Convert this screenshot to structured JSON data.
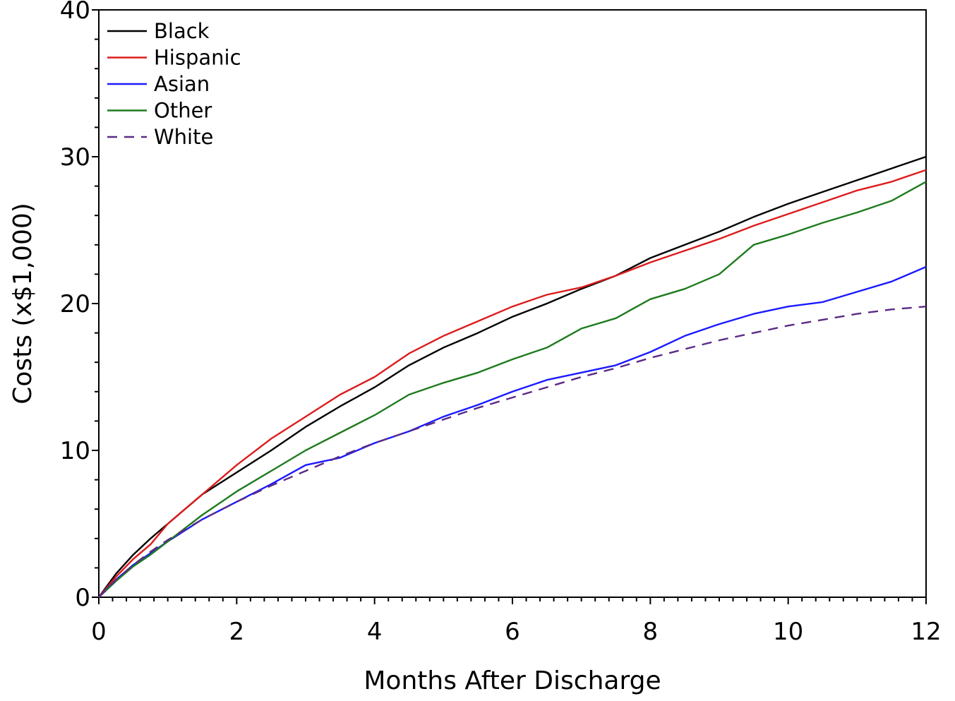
{
  "chart_data": {
    "type": "line",
    "title": "",
    "xlabel": "Months After Discharge",
    "ylabel": "Costs (x$1,000)",
    "xlim": [
      0,
      12
    ],
    "ylim": [
      0,
      40
    ],
    "xticks": [
      0,
      2,
      4,
      6,
      8,
      10,
      12
    ],
    "yticks": [
      0,
      10,
      20,
      30,
      40
    ],
    "xtick_labels": [
      "0",
      "2",
      "4",
      "6",
      "8",
      "10",
      "12"
    ],
    "ytick_labels": [
      "0",
      "10",
      "20",
      "30",
      "40"
    ],
    "grid": false,
    "legend_position": "top-left",
    "series": [
      {
        "name": "Black",
        "color": "#000000",
        "dash": "solid",
        "x": [
          0,
          0.25,
          0.5,
          0.75,
          1,
          1.5,
          2,
          2.5,
          3,
          3.5,
          4,
          4.5,
          5,
          5.5,
          6,
          6.5,
          7,
          7.5,
          8,
          8.5,
          9,
          9.5,
          10,
          10.5,
          11,
          11.5,
          12
        ],
        "y": [
          0,
          1.6,
          2.9,
          4.0,
          5.0,
          7.0,
          8.5,
          10.0,
          11.6,
          13.0,
          14.3,
          15.8,
          17.0,
          18.0,
          19.1,
          20.0,
          21.0,
          21.9,
          23.1,
          24.0,
          24.9,
          25.9,
          26.8,
          27.6,
          28.4,
          29.2,
          30.0
        ]
      },
      {
        "name": "Hispanic",
        "color": "#dd1c1c",
        "dash": "solid",
        "x": [
          0,
          0.25,
          0.5,
          0.75,
          1,
          1.5,
          2,
          2.5,
          3,
          3.5,
          4,
          4.5,
          5,
          5.5,
          6,
          6.5,
          7,
          7.5,
          8,
          8.5,
          9,
          9.5,
          10,
          10.5,
          11,
          11.5,
          12
        ],
        "y": [
          0,
          1.4,
          2.6,
          3.6,
          5.0,
          7.0,
          9.0,
          10.8,
          12.3,
          13.8,
          15.0,
          16.6,
          17.8,
          18.8,
          19.8,
          20.6,
          21.1,
          21.9,
          22.8,
          23.6,
          24.4,
          25.3,
          26.1,
          26.9,
          27.7,
          28.3,
          29.1
        ]
      },
      {
        "name": "Asian",
        "color": "#1a1aff",
        "dash": "solid",
        "x": [
          0,
          0.25,
          0.5,
          0.75,
          1,
          1.5,
          2,
          2.5,
          3,
          3.5,
          4,
          4.5,
          5,
          5.5,
          6,
          6.5,
          7,
          7.5,
          8,
          8.5,
          9,
          9.5,
          10,
          10.5,
          11,
          11.5,
          12
        ],
        "y": [
          0,
          1.2,
          2.2,
          3.0,
          3.8,
          5.3,
          6.5,
          7.7,
          9.0,
          9.5,
          10.5,
          11.3,
          12.3,
          13.1,
          14.0,
          14.8,
          15.3,
          15.8,
          16.7,
          17.8,
          18.6,
          19.3,
          19.8,
          20.1,
          20.8,
          21.5,
          22.5
        ]
      },
      {
        "name": "Other",
        "color": "#1e7b1e",
        "dash": "solid",
        "x": [
          0,
          0.25,
          0.5,
          0.75,
          1,
          1.5,
          2,
          2.5,
          3,
          3.5,
          4,
          4.5,
          5,
          5.5,
          6,
          6.5,
          7,
          7.5,
          8,
          8.5,
          9,
          9.5,
          10,
          10.5,
          11,
          11.5,
          12
        ],
        "y": [
          0,
          1.1,
          2.1,
          2.9,
          3.8,
          5.6,
          7.2,
          8.6,
          10.0,
          11.2,
          12.4,
          13.8,
          14.6,
          15.3,
          16.2,
          17.0,
          18.3,
          19.0,
          20.3,
          21.0,
          22.0,
          24.0,
          24.7,
          25.5,
          26.2,
          27.0,
          28.3
        ]
      },
      {
        "name": "White",
        "color": "#5b2a86",
        "dash": "dashed",
        "x": [
          0,
          0.25,
          0.5,
          0.75,
          1,
          1.5,
          2,
          2.5,
          3,
          3.5,
          4,
          4.5,
          5,
          5.5,
          6,
          6.5,
          7,
          7.5,
          8,
          8.5,
          9,
          9.5,
          10,
          10.5,
          11,
          11.5,
          12
        ],
        "y": [
          0,
          1.2,
          2.2,
          3.1,
          3.9,
          5.3,
          6.5,
          7.6,
          8.6,
          9.6,
          10.5,
          11.3,
          12.1,
          12.9,
          13.6,
          14.3,
          15.0,
          15.6,
          16.3,
          16.9,
          17.5,
          18.0,
          18.5,
          18.9,
          19.3,
          19.6,
          19.8
        ]
      }
    ]
  }
}
